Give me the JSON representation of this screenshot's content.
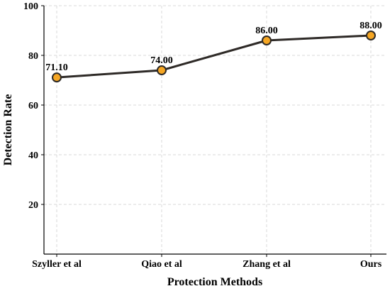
{
  "chart_data": {
    "type": "line",
    "categories": [
      "Szyller et al",
      "Qiao et al",
      "Zhang et al",
      "Ours"
    ],
    "series": [
      {
        "values": [
          71.1,
          74.0,
          86.0,
          88.0
        ],
        "labels": [
          "71.10",
          "74.00",
          "86.00",
          "88.00"
        ]
      }
    ],
    "title": "",
    "xlabel": "Protection Methods",
    "ylabel": "Detection Rate",
    "ylim": [
      0,
      100
    ],
    "yticks": [
      20,
      40,
      60,
      80,
      100
    ],
    "grid": true,
    "legend": "none",
    "colors": {
      "line": "#2e2a27",
      "marker_fill": "#f5a623",
      "marker_edge": "#2e2a27"
    }
  }
}
